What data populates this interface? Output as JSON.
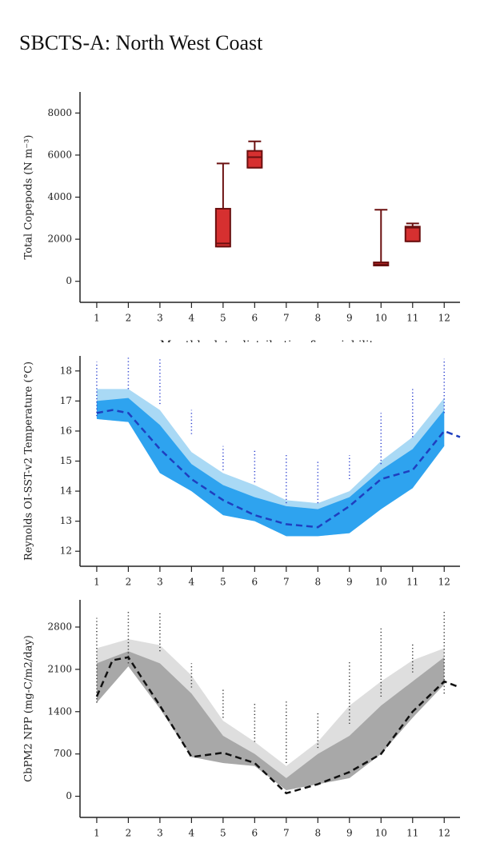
{
  "title": "SBCTS-A: North West Coast",
  "chart_data": [
    {
      "type": "box",
      "ylabel": "Total Copepods (N m⁻³)",
      "xlabel": "Monthly data distribution & variability",
      "xlim": [
        0.47,
        12.5
      ],
      "xticks": [
        1,
        2,
        3,
        4,
        5,
        6,
        7,
        8,
        9,
        10,
        11,
        12
      ],
      "ylim": [
        -1000,
        9000
      ],
      "yticks": [
        0,
        2000,
        4000,
        6000,
        8000
      ],
      "color": "#d63030",
      "edge_color": "#6b1010",
      "x": [
        5,
        6,
        10,
        11
      ],
      "whisker_low": [
        1650,
        5400,
        750,
        1900
      ],
      "q1": [
        1650,
        5400,
        750,
        1900
      ],
      "median": [
        1800,
        5900,
        800,
        2550
      ],
      "q3": [
        3450,
        6200,
        900,
        2600
      ],
      "whisker_high": [
        5600,
        6650,
        3400,
        2750
      ]
    },
    {
      "type": "band",
      "ylabel": "Reynolds OI-SST-v2 Temperature (°C)",
      "xlim": [
        0.47,
        12.5
      ],
      "xticks": [
        1,
        2,
        3,
        4,
        5,
        6,
        7,
        8,
        9,
        10,
        11,
        12
      ],
      "ylim": [
        11.5,
        18.5
      ],
      "yticks": [
        12,
        13,
        14,
        15,
        16,
        17,
        18
      ],
      "bands": [
        {
          "color": "#a9d9f5",
          "upper": [
            17.4,
            17.4,
            16.7,
            15.3,
            14.6,
            14.2,
            13.7,
            13.6,
            14.0,
            15.0,
            15.8,
            17.1
          ]
        },
        {
          "color": "#2ea3ef",
          "upper": [
            17.0,
            17.1,
            16.2,
            14.9,
            14.2,
            13.8,
            13.5,
            13.4,
            13.8,
            14.7,
            15.4,
            16.7
          ]
        }
      ],
      "lower": [
        16.4,
        16.3,
        14.6,
        14.0,
        13.2,
        13.0,
        12.5,
        12.5,
        12.6,
        13.4,
        14.1,
        15.5
      ],
      "obs_color": "#2a3fd0",
      "obs_low": [
        16.5,
        17.4,
        16.9,
        15.9,
        14.7,
        14.3,
        13.6,
        13.6,
        14.4,
        14.9,
        15.8,
        16.6
      ],
      "obs_high": [
        18.3,
        18.5,
        18.4,
        16.7,
        15.5,
        15.4,
        15.2,
        15.0,
        15.2,
        16.6,
        17.4,
        18.4
      ],
      "mean": {
        "color": "#1f3fbf",
        "x": [
          1,
          1.5,
          2,
          3,
          4,
          5,
          6,
          7,
          8,
          9,
          10,
          11,
          12,
          12.5
        ],
        "values": [
          16.6,
          16.7,
          16.6,
          15.4,
          14.4,
          13.7,
          13.2,
          12.9,
          12.8,
          13.5,
          14.4,
          14.7,
          16.0,
          15.8
        ]
      }
    },
    {
      "type": "band",
      "ylabel": "CbPM2 NPP (mg-C/m2/day)",
      "xlim": [
        0.47,
        12.5
      ],
      "xticks": [
        1,
        2,
        3,
        4,
        5,
        6,
        7,
        8,
        9,
        10,
        11,
        12
      ],
      "ylim": [
        -350,
        3250
      ],
      "yticks": [
        0,
        700,
        1400,
        2100,
        2800
      ],
      "bands": [
        {
          "color": "#dedede",
          "upper": [
            2450,
            2600,
            2500,
            2000,
            1250,
            900,
            500,
            900,
            1500,
            1900,
            2250,
            2450
          ]
        },
        {
          "color": "#a8a8a8",
          "upper": [
            2200,
            2400,
            2200,
            1700,
            1000,
            700,
            300,
            700,
            1000,
            1500,
            1900,
            2300
          ]
        }
      ],
      "lower": [
        1550,
        2150,
        1450,
        650,
        550,
        500,
        100,
        200,
        300,
        700,
        1300,
        1850
      ],
      "obs_color": "#333333",
      "obs_low": [
        1550,
        2200,
        2400,
        1800,
        1300,
        900,
        550,
        800,
        1200,
        1650,
        2050,
        1700
      ],
      "obs_high": [
        2950,
        3050,
        3050,
        2200,
        1800,
        1550,
        1600,
        1400,
        2250,
        2800,
        2550,
        3050
      ],
      "mean": {
        "color": "#111111",
        "x": [
          1,
          1.5,
          2,
          3,
          4,
          5,
          6,
          7,
          8,
          9,
          10,
          11,
          12,
          12.5
        ],
        "values": [
          1650,
          2250,
          2300,
          1500,
          650,
          720,
          550,
          50,
          200,
          400,
          700,
          1400,
          1900,
          1800
        ]
      }
    }
  ]
}
